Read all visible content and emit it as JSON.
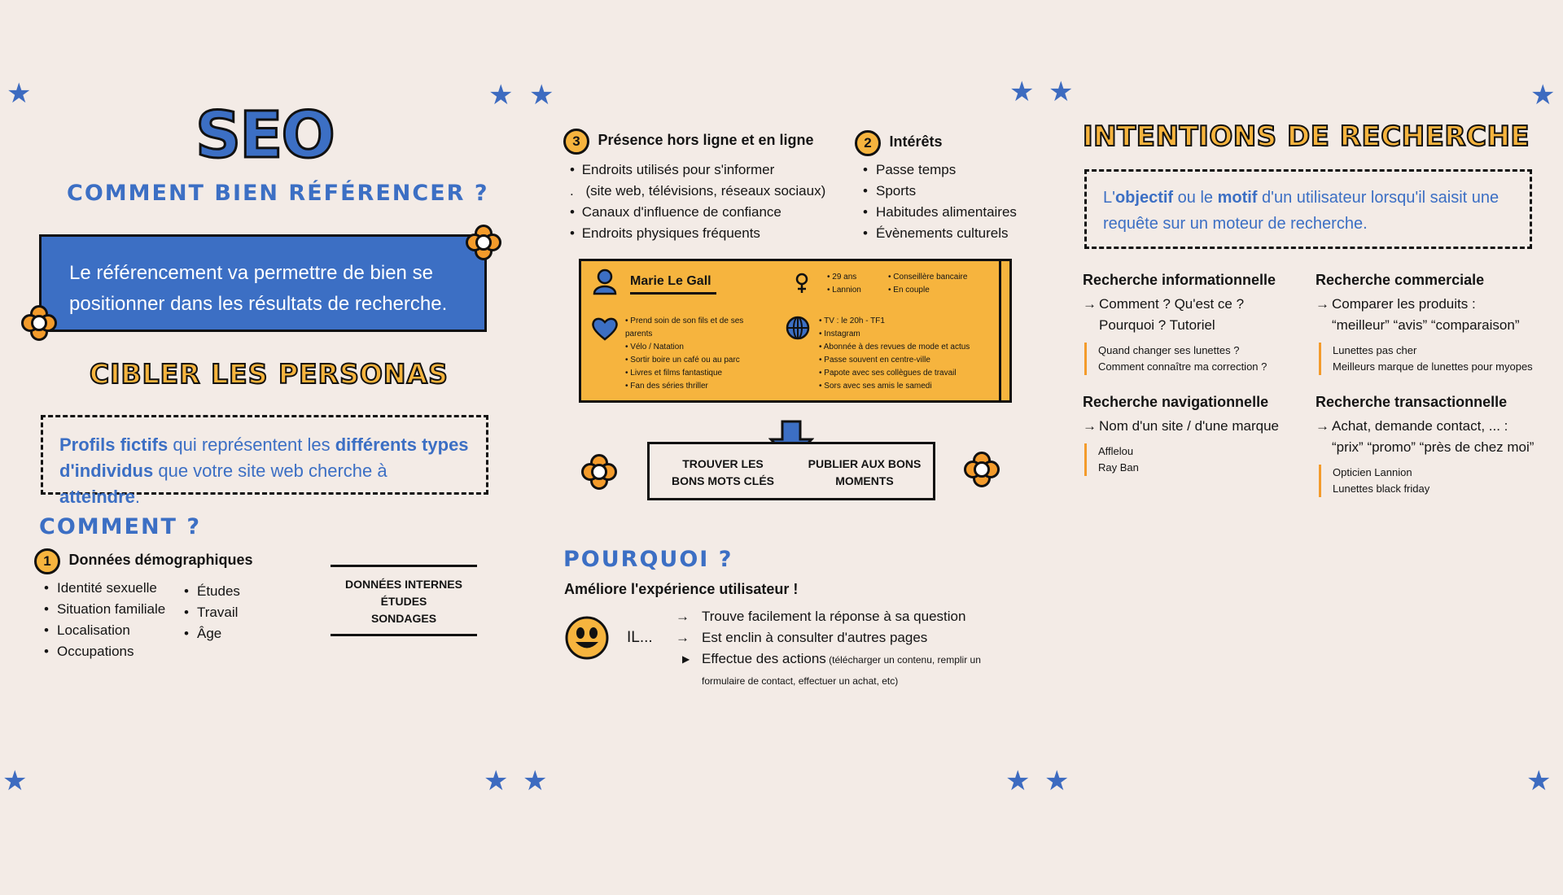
{
  "colors": {
    "background": "#f3ebe6",
    "blue": "#3c6fc4",
    "orange": "#f6b43e",
    "dark_orange": "#f39b2b",
    "black": "#141414"
  },
  "left": {
    "title": "SEO",
    "subtitle": "COMMENT BIEN RÉFÉRENCER ?",
    "blue_box": "Le référencement va permettre de bien se positionner dans les résultats de recherche.",
    "personas_title": "CIBLER LES PERSONAS",
    "personas_def": {
      "p1": "Profils fictifs",
      "p2": " qui représentent les ",
      "p3": "différents types d'individus",
      "p4": " que votre site web cherche à ",
      "p5": "atteindre",
      "p6": "."
    },
    "comment_title": "COMMENT ?",
    "demo": {
      "num": "1",
      "title": "Données démographiques",
      "col1": [
        "Identité sexuelle",
        "Situation familiale",
        "Localisation",
        "Occupations"
      ],
      "col2": [
        "Études",
        "Travail",
        "Âge"
      ]
    },
    "sources": [
      "DONNÉES INTERNES",
      "ÉTUDES",
      "SONDAGES"
    ]
  },
  "middle": {
    "presence": {
      "num": "3",
      "title": "Présence hors ligne et en ligne",
      "items": [
        "Endroits utilisés pour s'informer",
        "(site web, télévisions, réseaux sociaux)",
        "Canaux d'influence de confiance",
        "Endroits physiques fréquents"
      ]
    },
    "interets": {
      "num": "2",
      "title": "Intérêts",
      "items": [
        "Passe temps",
        "Sports",
        "Habitudes alimentaires",
        "Évènements culturels"
      ]
    },
    "persona_card": {
      "name": "Marie Le Gall",
      "info_a": [
        "29 ans",
        "Lannion"
      ],
      "info_b": [
        "Conseillère bancaire",
        "En couple"
      ],
      "hobbies": [
        "Prend soin de son fils et de ses parents",
        "Vélo / Natation",
        "Sortir boire un café ou au parc",
        "Livres et films fantastique",
        "Fan des séries thriller"
      ],
      "media": [
        "TV : le 20h - TF1",
        "Instagram",
        "Abonnée à des revues de mode et actus",
        "Passe souvent en centre-ville",
        "Papote avec ses collègues de travail",
        "Sors avec ses amis le samedi"
      ]
    },
    "action_left": "TROUVER LES BONS MOTS CLÉS",
    "action_right": "PUBLIER AUX BONS MOMENTS",
    "pourquoi_title": "POURQUOI ?",
    "pourquoi_sub": "Améliore l'expérience utilisateur !",
    "il": "IL...",
    "benefits": [
      "Trouve facilement la réponse à sa question",
      "Est enclin à consulter d'autres pages"
    ],
    "benefit3_main": "Effectue des actions",
    "benefit3_small": " (télécharger un contenu, remplir un formulaire de contact, effectuer un achat, etc)"
  },
  "right": {
    "title": "INTENTIONS DE RECHERCHE",
    "def": {
      "p1": "L'",
      "p2": "objectif",
      "p3": " ou le ",
      "p4": "motif",
      "p5": " d'un utilisateur lorsqu'il saisit une requête sur un moteur de recherche."
    },
    "info": {
      "title": "Recherche informationnelle",
      "lines": [
        "Comment ? Qu'est ce ?",
        "Pourquoi ? Tutoriel"
      ],
      "examples": [
        "Quand changer ses lunettes ?",
        "Comment connaître ma correction ?"
      ]
    },
    "commerciale": {
      "title": "Recherche commerciale",
      "lines": [
        "Comparer les produits :",
        "“meilleur” “avis” “comparaison”"
      ],
      "examples": [
        "Lunettes pas cher",
        "Meilleurs marque de lunettes pour myopes"
      ]
    },
    "navigationnelle": {
      "title": "Recherche navigationnelle",
      "lines": [
        "Nom d'un site / d'une marque"
      ],
      "examples": [
        "Afflelou",
        "Ray Ban"
      ]
    },
    "transactionnelle": {
      "title": "Recherche transactionnelle",
      "lines": [
        "Achat, demande contact, ... :",
        "“prix” “promo” “près de chez moi”"
      ],
      "examples": [
        "Opticien Lannion",
        "Lunettes black friday"
      ]
    }
  }
}
